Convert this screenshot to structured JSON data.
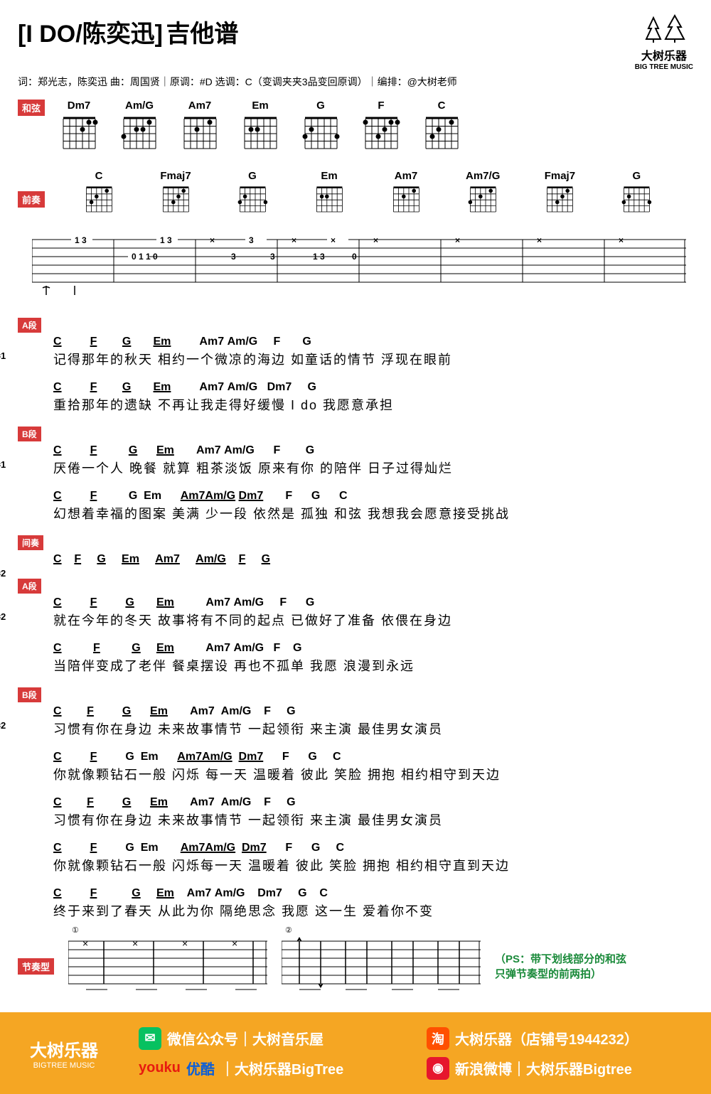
{
  "title_main": "[I DO/陈奕迅]",
  "title_sub": "吉他谱",
  "logo": {
    "cn": "大树乐器",
    "en": "BIG TREE MUSIC"
  },
  "info_line": "词：郑光志，陈奕迅 曲：周国贤｜原调：#D 选调：C（变调夹夹3品变回原调）｜编排：@大树老师",
  "labels": {
    "chords": "和弦",
    "intro": "前奏",
    "sectA": "A段",
    "sectB": "B段",
    "interlude": "间奏",
    "rhythm": "节奏型"
  },
  "rhythm_labels": {
    "r1": "节奏1",
    "r2": "节奏2"
  },
  "main_chords": [
    "Dm7",
    "Am/G",
    "Am7",
    "Em",
    "G",
    "F",
    "C"
  ],
  "intro_chords": [
    "C",
    "Fmaj7",
    "G",
    "Em",
    "Am7",
    "Am7/G",
    "Fmaj7",
    "G"
  ],
  "sections": [
    {
      "tag": "sectA",
      "rhythm": "r1",
      "lines": [
        {
          "chords": "C         F        G       Em         Am7 Am/G     F       G",
          "ul": [
            0,
            1,
            2,
            3
          ],
          "lyrics": "记得那年的秋天   相约一个微凉的海边   如童话的情节  浮现在眼前"
        },
        {
          "chords": "C         F        G       Em         Am7 Am/G   Dm7     G",
          "ul": [
            0,
            1,
            2,
            3
          ],
          "lyrics": "重拾那年的遗缺   不再让我走得好缓慢   I do   我愿意承担"
        }
      ]
    },
    {
      "tag": "sectB",
      "rhythm": "r1",
      "lines": [
        {
          "chords": "C         F          G      Em       Am7 Am/G      F        G",
          "ul": [
            0,
            1,
            2,
            3
          ],
          "lyrics": "厌倦一个人 晚餐   就算 粗茶淡饭  原来有你 的陪伴  日子过得灿烂"
        },
        {
          "chords": "C         F          G  Em      Am7Am/G Dm7       F      G      C",
          "ul": [
            0,
            1,
            4,
            5
          ],
          "lyrics": "幻想着幸福的图案  美满 少一段  依然是  孤独 和弦  我想我会愿意接受挑战"
        }
      ]
    },
    {
      "tag": "interlude",
      "rhythm": "r2",
      "lines": [
        {
          "chords": "C    F     G     Em     Am7     Am/G    F     G",
          "ul": [
            0,
            1,
            2,
            3,
            4,
            5,
            6,
            7
          ],
          "lyrics": ""
        }
      ]
    },
    {
      "tag": "sectA",
      "rhythm": "r2",
      "lines": [
        {
          "chords": "C         F         G       Em          Am7 Am/G     F      G",
          "ul": [
            0,
            1,
            2,
            3
          ],
          "lyrics": "就在今年的冬天   故事将有不同的起点   已做好了准备  依偎在身边"
        },
        {
          "chords": "C          F          G     Em          Am7 Am/G   F    G",
          "ul": [
            0,
            1,
            2,
            3
          ],
          "lyrics": "当陪伴变成了老伴   餐桌摆设 再也不孤单   我愿  浪漫到永远"
        }
      ]
    },
    {
      "tag": "sectB",
      "rhythm": "r2",
      "lines": [
        {
          "chords": "C        F         G      Em       Am7  Am/G    F     G",
          "ul": [
            0,
            1,
            2,
            3
          ],
          "lyrics": "习惯有你在身边  未来故事情节  一起领衔  来主演  最佳男女演员"
        },
        {
          "chords": "C         F         G  Em      Am7Am/G  Dm7      F      G     C",
          "ul": [
            0,
            1,
            4,
            5
          ],
          "lyrics": "你就像颗钻石一般  闪烁 每一天   温暖着  彼此 笑脸  拥抱  相约相守到天边"
        },
        {
          "chords": "C        F         G      Em       Am7  Am/G    F     G",
          "ul": [
            0,
            1,
            2,
            3
          ],
          "lyrics": "习惯有你在身边  未来故事情节  一起领衔  来主演  最佳男女演员"
        },
        {
          "chords": "C         F         G  Em       Am7Am/G  Dm7      F      G     C",
          "ul": [
            0,
            1,
            4,
            5
          ],
          "lyrics": "你就像颗钻石一般  闪烁每一天   温暖着  彼此  笑脸  拥抱  相约相守直到天边"
        },
        {
          "chords": "C         F           G     Em    Am7 Am/G    Dm7     G    C",
          "ul": [
            0,
            1,
            2,
            3
          ],
          "lyrics": "终于来到了春天    从此为你 隔绝思念     我愿   这一生 爱着你不变"
        }
      ]
    }
  ],
  "ps_note": "（PS：带下划线部分的和弦\n只弹节奏型的前两拍）",
  "footer": {
    "brand_cn": "大树乐器",
    "brand_en": "BIGTREE MUSIC",
    "wechat": "微信公众号｜大树音乐屋",
    "taobao": "大树乐器（店铺号1944232）",
    "youku_brand": "youku",
    "youku_cn": "优酷",
    "youku": "｜大树乐器BigTree",
    "weibo": "新浪微博｜大树乐器Bigtree"
  }
}
